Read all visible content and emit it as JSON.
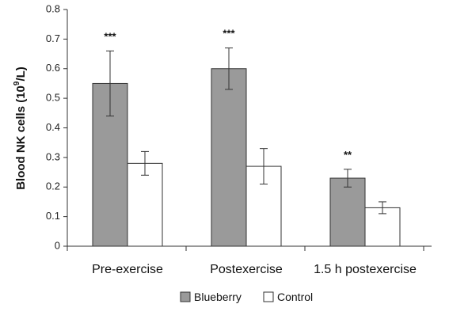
{
  "chart_data": {
    "type": "bar",
    "ylabel": "Blood NK cells (10",
    "ylabel_superscript": "9",
    "ylabel_suffix": "/L)",
    "ylim": [
      0,
      0.8
    ],
    "yticks": [
      "0",
      "0.1",
      "0.2",
      "0.3",
      "0.4",
      "0.5",
      "0.6",
      "0.7",
      "0.8"
    ],
    "ytick_values": [
      0,
      0.1,
      0.2,
      0.3,
      0.4,
      0.5,
      0.6,
      0.7,
      0.8
    ],
    "categories": [
      "Pre-exercise",
      "Postexercise",
      "1.5 h postexercise"
    ],
    "series": [
      {
        "name": "Blueberry",
        "values": [
          0.55,
          0.6,
          0.23
        ],
        "errors": [
          0.11,
          0.07,
          0.03
        ],
        "color": "#9a9a9a"
      },
      {
        "name": "Control",
        "values": [
          0.28,
          0.27,
          0.13
        ],
        "errors": [
          0.04,
          0.06,
          0.02
        ],
        "color": "#ffffff"
      }
    ],
    "significance": [
      "***",
      "***",
      "**"
    ],
    "grid": false,
    "legend_position": "bottom-center"
  }
}
